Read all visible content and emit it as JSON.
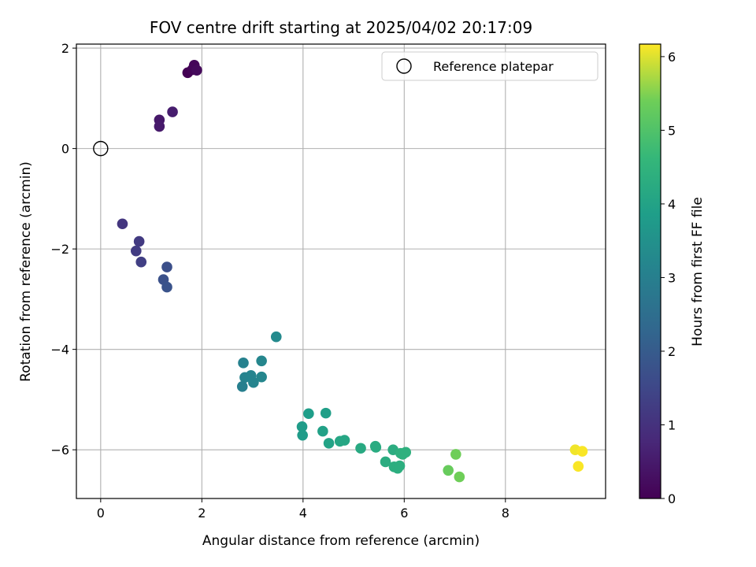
{
  "chart_data": {
    "type": "scatter",
    "title": "FOV centre drift starting at 2025/04/02 20:17:09",
    "xlabel": "Angular distance from reference (arcmin)",
    "ylabel": "Rotation from reference (arcmin)",
    "xlim": [
      -0.48,
      9.98
    ],
    "ylim": [
      -6.97,
      2.08
    ],
    "xticks": [
      0,
      2,
      4,
      6,
      8
    ],
    "yticks": [
      -6,
      -4,
      -2,
      0,
      2
    ],
    "xtick_labels": [
      "0",
      "2",
      "4",
      "6",
      "8"
    ],
    "ytick_labels": [
      "−6",
      "−4",
      "−2",
      "0",
      "2"
    ],
    "grid": true,
    "legend": {
      "location": "top-right",
      "entries": [
        {
          "label": "Reference platepar",
          "marker": "hollow-circle"
        }
      ]
    },
    "reference_point": {
      "x": 0,
      "y": 0
    },
    "colorbar": {
      "label": "Hours from first FF file",
      "colormap": "viridis",
      "range": [
        0,
        6.17
      ],
      "ticks": [
        0,
        1,
        2,
        3,
        4,
        5,
        6
      ],
      "tick_labels": [
        "0",
        "1",
        "2",
        "3",
        "4",
        "5",
        "6"
      ]
    },
    "points": [
      {
        "x": 1.72,
        "y": 1.51,
        "c": 0.0
      },
      {
        "x": 1.81,
        "y": 1.57,
        "c": 0.05
      },
      {
        "x": 1.85,
        "y": 1.66,
        "c": 0.1
      },
      {
        "x": 1.9,
        "y": 1.56,
        "c": 0.15
      },
      {
        "x": 1.16,
        "y": 0.57,
        "c": 0.45
      },
      {
        "x": 1.16,
        "y": 0.44,
        "c": 0.5
      },
      {
        "x": 1.42,
        "y": 0.73,
        "c": 0.55
      },
      {
        "x": 0.43,
        "y": -1.5,
        "c": 1.1
      },
      {
        "x": 0.76,
        "y": -1.85,
        "c": 1.2
      },
      {
        "x": 0.7,
        "y": -2.04,
        "c": 1.25
      },
      {
        "x": 0.8,
        "y": -2.26,
        "c": 1.3
      },
      {
        "x": 1.31,
        "y": -2.36,
        "c": 1.7
      },
      {
        "x": 1.24,
        "y": -2.61,
        "c": 1.75
      },
      {
        "x": 1.31,
        "y": -2.76,
        "c": 1.8
      },
      {
        "x": 2.82,
        "y": -4.27,
        "c": 3.05
      },
      {
        "x": 2.85,
        "y": -4.56,
        "c": 3.1
      },
      {
        "x": 2.97,
        "y": -4.52,
        "c": 3.15
      },
      {
        "x": 2.8,
        "y": -4.74,
        "c": 3.0
      },
      {
        "x": 3.02,
        "y": -4.66,
        "c": 3.15
      },
      {
        "x": 3.18,
        "y": -4.23,
        "c": 3.2
      },
      {
        "x": 3.18,
        "y": -4.55,
        "c": 3.2
      },
      {
        "x": 3.47,
        "y": -3.75,
        "c": 3.3
      },
      {
        "x": 4.11,
        "y": -5.28,
        "c": 3.85
      },
      {
        "x": 3.98,
        "y": -5.54,
        "c": 3.8
      },
      {
        "x": 3.99,
        "y": -5.71,
        "c": 3.8
      },
      {
        "x": 4.45,
        "y": -5.27,
        "c": 3.9
      },
      {
        "x": 4.39,
        "y": -5.63,
        "c": 3.95
      },
      {
        "x": 4.51,
        "y": -5.87,
        "c": 4.0
      },
      {
        "x": 4.73,
        "y": -5.83,
        "c": 4.1
      },
      {
        "x": 4.82,
        "y": -5.81,
        "c": 4.1
      },
      {
        "x": 5.14,
        "y": -5.97,
        "c": 4.2
      },
      {
        "x": 5.43,
        "y": -5.93,
        "c": 4.25
      },
      {
        "x": 5.44,
        "y": -5.95,
        "c": 4.25
      },
      {
        "x": 5.78,
        "y": -6.0,
        "c": 4.3
      },
      {
        "x": 5.63,
        "y": -6.24,
        "c": 4.3
      },
      {
        "x": 5.8,
        "y": -6.34,
        "c": 4.35
      },
      {
        "x": 5.87,
        "y": -6.37,
        "c": 4.35
      },
      {
        "x": 5.91,
        "y": -6.32,
        "c": 4.35
      },
      {
        "x": 5.93,
        "y": -6.07,
        "c": 4.4
      },
      {
        "x": 5.97,
        "y": -6.09,
        "c": 4.4
      },
      {
        "x": 6.03,
        "y": -6.05,
        "c": 4.4
      },
      {
        "x": 6.87,
        "y": -6.41,
        "c": 5.3
      },
      {
        "x": 7.02,
        "y": -6.09,
        "c": 5.4
      },
      {
        "x": 7.09,
        "y": -6.54,
        "c": 5.4
      },
      {
        "x": 9.38,
        "y": -6.0,
        "c": 6.1
      },
      {
        "x": 9.52,
        "y": -6.03,
        "c": 6.15
      },
      {
        "x": 9.44,
        "y": -6.33,
        "c": 6.15
      }
    ]
  }
}
